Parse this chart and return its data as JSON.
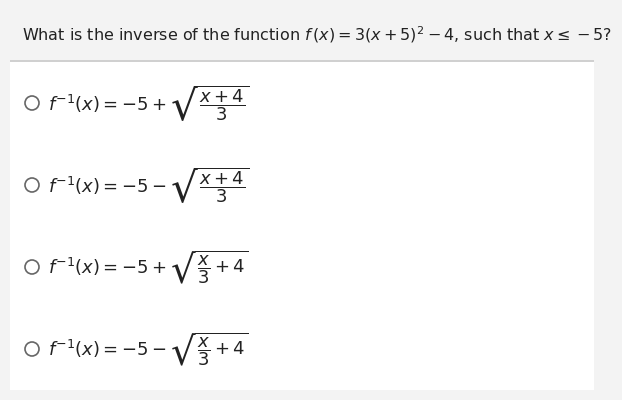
{
  "title": "What is the inverse of the function $f\\,(x) = 3(x + 5)^2 - 4$, such that $x \\leq -5$?",
  "title_plain": "What is the inverse of the function f (x) = 3(x + 5)2 – 4, such that x ≤ –5?",
  "options_latex": [
    "$f^{-1}(x)=-5+\\sqrt{\\dfrac{x+4}{3}}$",
    "$f^{-1}(x)=-5-\\sqrt{\\dfrac{x+4}{3}}$",
    "$f^{-1}(x)=-5+\\sqrt{\\dfrac{x}{3}+4}$",
    "$f^{-1}(x)=-5-\\sqrt{\\dfrac{x}{3}+4}$"
  ],
  "bg_color": "#f3f3f3",
  "box_color": "#ffffff",
  "divider_color": "#d0d0d0",
  "text_color": "#222222",
  "circle_color": "#666666",
  "title_fontsize": 11.5,
  "option_fontsize": 13
}
